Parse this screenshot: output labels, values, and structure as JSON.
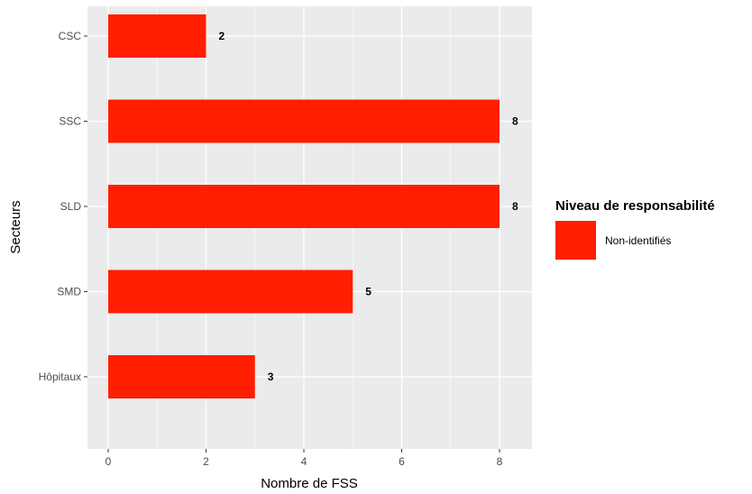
{
  "chart_data": {
    "type": "bar",
    "orientation": "horizontal",
    "categories": [
      "CSC",
      "SSC",
      "SLD",
      "SMD",
      "Hôpitaux"
    ],
    "series": [
      {
        "name": "Non-identifiés",
        "values": [
          2,
          8,
          8,
          5,
          3
        ],
        "color": "#ff1e00"
      }
    ],
    "data_labels": [
      "2",
      "8",
      "8",
      "5",
      "3"
    ],
    "xlabel": "Nombre de FSS",
    "ylabel": "Secteurs",
    "xlim": [
      0,
      8.75
    ],
    "x_ticks": [
      0,
      2,
      4,
      6,
      8
    ],
    "grid": true,
    "legend": {
      "title": "Niveau de responsabilité",
      "position": "right",
      "entries": [
        "Non-identifiés"
      ]
    }
  },
  "colors": {
    "panel_background": "#ebebeb",
    "grid_major": "#ffffff",
    "bar": "#ff1e00"
  }
}
